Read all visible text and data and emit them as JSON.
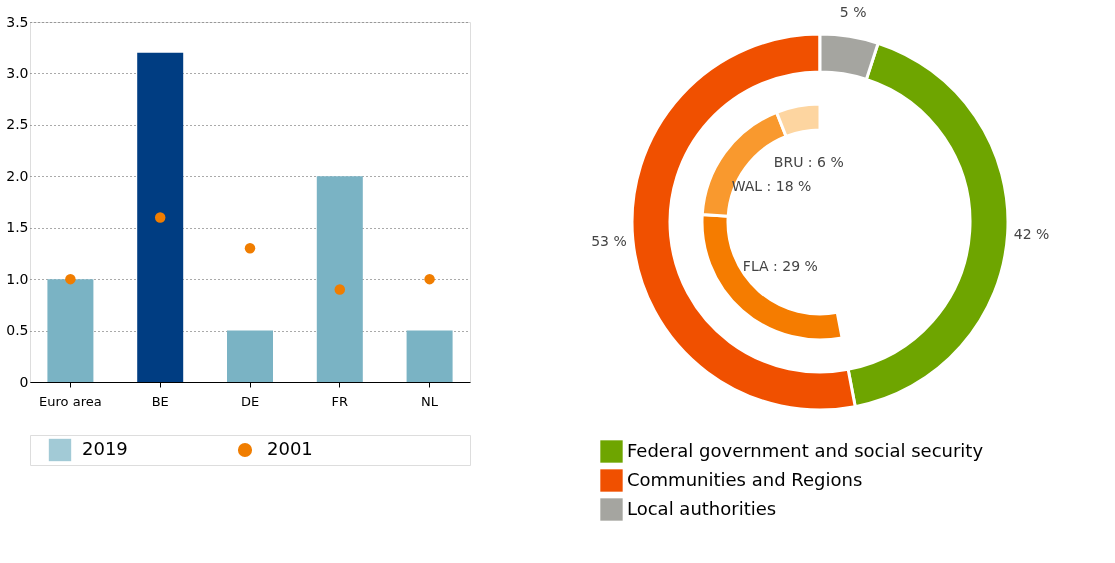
{
  "chart_data": [
    {
      "type": "bar",
      "categories": [
        "Euro area",
        "BE",
        "DE",
        "FR",
        "NL"
      ],
      "ylim": [
        0,
        3.5
      ],
      "yticks": [
        0,
        0.5,
        {
          "value": 1,
          "label": "1.0"
        },
        1.5,
        {
          "value": 2,
          "label": "2.0"
        },
        2.5,
        {
          "value": 3,
          "label": "3.0"
        },
        3.5
      ],
      "grid": "y",
      "legend": "bottom",
      "series": [
        {
          "name": "2019",
          "type": "bar",
          "color": "#7ab3c4",
          "colors": [
            "#7ab3c4",
            "#003d82",
            "#7ab3c4",
            "#7ab3c4",
            "#7ab3c4"
          ],
          "values": [
            1.0,
            3.2,
            0.5,
            2.0,
            0.5
          ]
        },
        {
          "name": "2001",
          "type": "scatter",
          "color": "#f07d00",
          "values": [
            1.0,
            1.6,
            1.3,
            0.9,
            1.0
          ]
        }
      ]
    },
    {
      "type": "donut",
      "legend": "bottom",
      "categories": [
        "Federal government and social security",
        "Communities and Regions",
        "Local authorities"
      ],
      "values": [
        42,
        53,
        5
      ],
      "colors": [
        "#6ea500",
        "#f05000",
        "#a5a5a0"
      ],
      "value_labels": [
        "42 %",
        "53 %",
        "5 %"
      ],
      "series": [
        {
          "values": [
            29,
            18,
            6
          ],
          "colors": [
            "#f57c00",
            "#f9992e",
            "#fdd5a0"
          ],
          "value_labels": [
            "FLA : 29 %",
            "WAL : 18 %",
            "BRU : 6 %"
          ]
        }
      ]
    }
  ]
}
